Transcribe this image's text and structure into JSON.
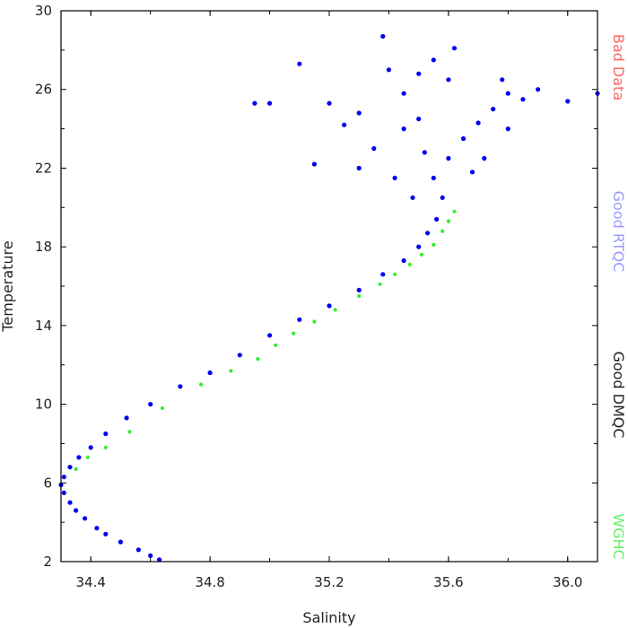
{
  "chart_data": {
    "type": "scatter",
    "title": "",
    "xlabel": "Salinity",
    "ylabel": "Temperature",
    "xlim": [
      34.3,
      36.1
    ],
    "ylim": [
      2,
      30
    ],
    "x_ticks": [
      34.4,
      34.8,
      35.2,
      35.6,
      36.0
    ],
    "x_tick_labels": [
      "34.4",
      "34.8",
      "35.2",
      "35.6",
      "36.0"
    ],
    "y_ticks": [
      2,
      6,
      10,
      14,
      18,
      22,
      26,
      30
    ],
    "y_tick_labels": [
      "2",
      "6",
      "10",
      "14",
      "18",
      "22",
      "26",
      "30"
    ],
    "grid": false,
    "legend": "right-vertical",
    "legend_items": [
      {
        "label": "Bad Data",
        "color": "#ff6666"
      },
      {
        "label": "Good RTQC",
        "color": "#9a9aff"
      },
      {
        "label": "Good DMQC",
        "color": "#222222"
      },
      {
        "label": "WGHC",
        "color": "#66ee66"
      }
    ],
    "series": [
      {
        "name": "Good RTQC",
        "color": "#0000ee",
        "points": [
          [
            34.63,
            2.1
          ],
          [
            34.6,
            2.3
          ],
          [
            34.56,
            2.6
          ],
          [
            34.5,
            3.0
          ],
          [
            34.45,
            3.4
          ],
          [
            34.42,
            3.7
          ],
          [
            34.38,
            4.2
          ],
          [
            34.35,
            4.6
          ],
          [
            34.33,
            5.0
          ],
          [
            34.31,
            5.5
          ],
          [
            34.3,
            5.9
          ],
          [
            34.31,
            6.3
          ],
          [
            34.33,
            6.8
          ],
          [
            34.36,
            7.3
          ],
          [
            34.4,
            7.8
          ],
          [
            34.45,
            8.5
          ],
          [
            34.52,
            9.3
          ],
          [
            34.6,
            10.0
          ],
          [
            34.7,
            10.9
          ],
          [
            34.8,
            11.6
          ],
          [
            34.9,
            12.5
          ],
          [
            35.0,
            13.5
          ],
          [
            35.1,
            14.3
          ],
          [
            35.2,
            15.0
          ],
          [
            35.3,
            15.8
          ],
          [
            35.38,
            16.6
          ],
          [
            35.45,
            17.3
          ],
          [
            35.5,
            18.0
          ],
          [
            35.53,
            18.7
          ],
          [
            35.56,
            19.4
          ],
          [
            35.58,
            20.5
          ],
          [
            35.55,
            21.5
          ],
          [
            35.6,
            22.5
          ],
          [
            35.65,
            23.5
          ],
          [
            35.7,
            24.3
          ],
          [
            35.75,
            25.0
          ],
          [
            35.8,
            25.8
          ],
          [
            35.5,
            24.5
          ],
          [
            35.45,
            25.8
          ],
          [
            35.4,
            27.0
          ],
          [
            35.55,
            27.5
          ],
          [
            35.62,
            28.1
          ],
          [
            35.38,
            28.7
          ],
          [
            35.2,
            25.3
          ],
          [
            35.0,
            25.3
          ],
          [
            35.1,
            27.3
          ],
          [
            34.95,
            25.3
          ],
          [
            35.3,
            22.0
          ],
          [
            35.35,
            23.0
          ],
          [
            35.42,
            21.5
          ],
          [
            35.48,
            20.5
          ],
          [
            35.52,
            22.8
          ],
          [
            35.68,
            21.8
          ],
          [
            35.72,
            22.5
          ],
          [
            35.8,
            24.0
          ],
          [
            35.85,
            25.5
          ],
          [
            36.0,
            25.4
          ],
          [
            36.1,
            25.8
          ],
          [
            35.9,
            26.0
          ],
          [
            35.78,
            26.5
          ],
          [
            35.3,
            24.8
          ],
          [
            35.25,
            24.2
          ],
          [
            35.45,
            24.0
          ],
          [
            35.6,
            26.5
          ],
          [
            35.5,
            26.8
          ],
          [
            35.15,
            22.2
          ]
        ]
      },
      {
        "name": "WGHC",
        "color": "#33ee33",
        "points": [
          [
            34.35,
            6.7
          ],
          [
            34.39,
            7.3
          ],
          [
            34.45,
            7.8
          ],
          [
            34.53,
            8.6
          ],
          [
            34.64,
            9.8
          ],
          [
            34.77,
            11.0
          ],
          [
            34.87,
            11.7
          ],
          [
            34.96,
            12.3
          ],
          [
            35.02,
            13.0
          ],
          [
            35.08,
            13.6
          ],
          [
            35.15,
            14.2
          ],
          [
            35.22,
            14.8
          ],
          [
            35.3,
            15.5
          ],
          [
            35.37,
            16.1
          ],
          [
            35.42,
            16.6
          ],
          [
            35.47,
            17.1
          ],
          [
            35.51,
            17.6
          ],
          [
            35.55,
            18.1
          ],
          [
            35.58,
            18.8
          ],
          [
            35.6,
            19.3
          ],
          [
            35.62,
            19.8
          ]
        ]
      }
    ]
  }
}
